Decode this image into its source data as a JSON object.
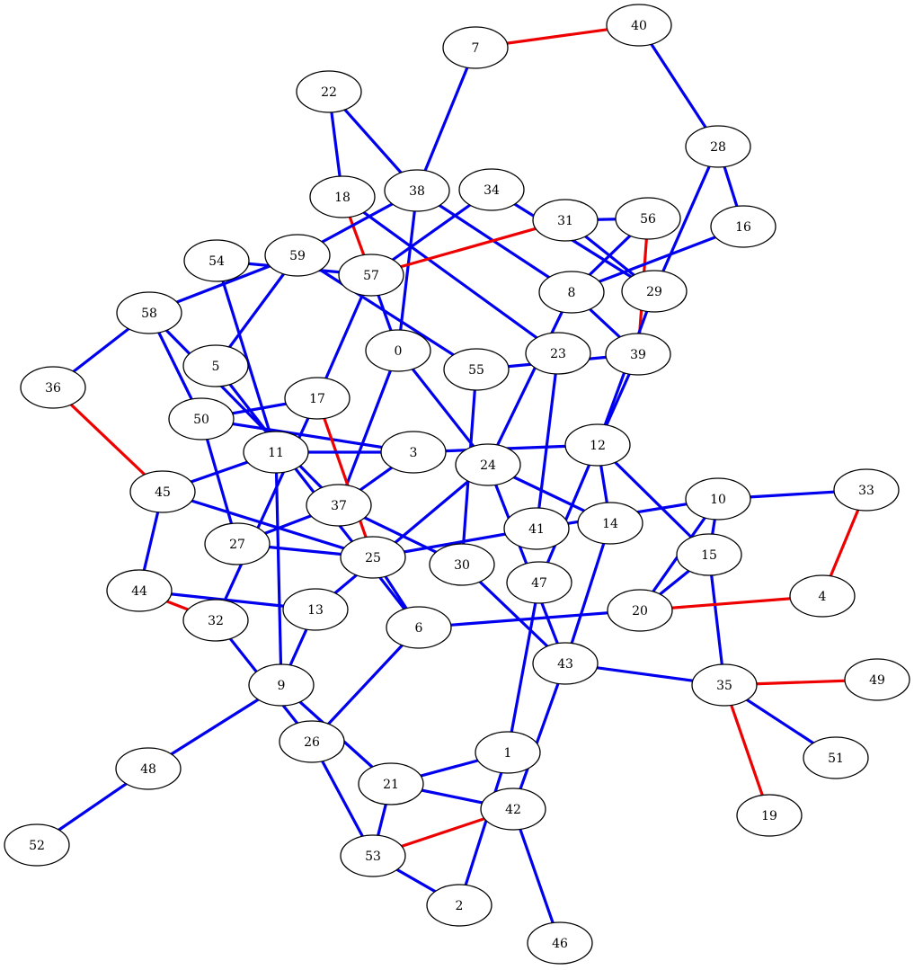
{
  "colors": {
    "normal_edge": "#0000ee",
    "highlight_edge": "#ee0000"
  },
  "nodes": [
    {
      "id": "0"
    },
    {
      "id": "1"
    },
    {
      "id": "2"
    },
    {
      "id": "3"
    },
    {
      "id": "4"
    },
    {
      "id": "5"
    },
    {
      "id": "6"
    },
    {
      "id": "7"
    },
    {
      "id": "8"
    },
    {
      "id": "9"
    },
    {
      "id": "10"
    },
    {
      "id": "11"
    },
    {
      "id": "12"
    },
    {
      "id": "13"
    },
    {
      "id": "14"
    },
    {
      "id": "15"
    },
    {
      "id": "16"
    },
    {
      "id": "17"
    },
    {
      "id": "18"
    },
    {
      "id": "19"
    },
    {
      "id": "20"
    },
    {
      "id": "21"
    },
    {
      "id": "22"
    },
    {
      "id": "23"
    },
    {
      "id": "24"
    },
    {
      "id": "25"
    },
    {
      "id": "26"
    },
    {
      "id": "27"
    },
    {
      "id": "28"
    },
    {
      "id": "29"
    },
    {
      "id": "30"
    },
    {
      "id": "31"
    },
    {
      "id": "32"
    },
    {
      "id": "33"
    },
    {
      "id": "34"
    },
    {
      "id": "35"
    },
    {
      "id": "36"
    },
    {
      "id": "37"
    },
    {
      "id": "38"
    },
    {
      "id": "39"
    },
    {
      "id": "40"
    },
    {
      "id": "41"
    },
    {
      "id": "42"
    },
    {
      "id": "43"
    },
    {
      "id": "44"
    },
    {
      "id": "45"
    },
    {
      "id": "46"
    },
    {
      "id": "47"
    },
    {
      "id": "48"
    },
    {
      "id": "49"
    },
    {
      "id": "50"
    },
    {
      "id": "51"
    },
    {
      "id": "52"
    },
    {
      "id": "53"
    },
    {
      "id": "54"
    },
    {
      "id": "55"
    },
    {
      "id": "56"
    },
    {
      "id": "57"
    },
    {
      "id": "58"
    },
    {
      "id": "59"
    }
  ],
  "edges": [
    {
      "from": "7",
      "to": "40",
      "color": "red"
    },
    {
      "from": "40",
      "to": "28",
      "color": "blue"
    },
    {
      "from": "7",
      "to": "38",
      "color": "blue"
    },
    {
      "from": "22",
      "to": "18",
      "color": "blue"
    },
    {
      "from": "22",
      "to": "38",
      "color": "blue"
    },
    {
      "from": "28",
      "to": "16",
      "color": "blue"
    },
    {
      "from": "28",
      "to": "29",
      "color": "blue"
    },
    {
      "from": "18",
      "to": "57",
      "color": "red"
    },
    {
      "from": "18",
      "to": "23",
      "color": "blue"
    },
    {
      "from": "38",
      "to": "8",
      "color": "blue"
    },
    {
      "from": "38",
      "to": "59",
      "color": "blue"
    },
    {
      "from": "38",
      "to": "0",
      "color": "blue"
    },
    {
      "from": "34",
      "to": "57",
      "color": "blue"
    },
    {
      "from": "34",
      "to": "29",
      "color": "blue"
    },
    {
      "from": "31",
      "to": "56",
      "color": "blue"
    },
    {
      "from": "31",
      "to": "57",
      "color": "red"
    },
    {
      "from": "31",
      "to": "29",
      "color": "blue"
    },
    {
      "from": "56",
      "to": "8",
      "color": "blue"
    },
    {
      "from": "56",
      "to": "39",
      "color": "red"
    },
    {
      "from": "16",
      "to": "8",
      "color": "blue"
    },
    {
      "from": "54",
      "to": "57",
      "color": "blue"
    },
    {
      "from": "54",
      "to": "11",
      "color": "blue"
    },
    {
      "from": "59",
      "to": "55",
      "color": "blue"
    },
    {
      "from": "59",
      "to": "5",
      "color": "blue"
    },
    {
      "from": "57",
      "to": "0",
      "color": "blue"
    },
    {
      "from": "57",
      "to": "17",
      "color": "blue"
    },
    {
      "from": "58",
      "to": "59",
      "color": "blue"
    },
    {
      "from": "58",
      "to": "36",
      "color": "blue"
    },
    {
      "from": "58",
      "to": "50",
      "color": "blue"
    },
    {
      "from": "58",
      "to": "37",
      "color": "blue"
    },
    {
      "from": "8",
      "to": "39",
      "color": "blue"
    },
    {
      "from": "8",
      "to": "24",
      "color": "blue"
    },
    {
      "from": "29",
      "to": "12",
      "color": "blue"
    },
    {
      "from": "0",
      "to": "24",
      "color": "blue"
    },
    {
      "from": "0",
      "to": "37",
      "color": "blue"
    },
    {
      "from": "5",
      "to": "6",
      "color": "blue"
    },
    {
      "from": "55",
      "to": "39",
      "color": "blue"
    },
    {
      "from": "55",
      "to": "30",
      "color": "blue"
    },
    {
      "from": "23",
      "to": "41",
      "color": "blue"
    },
    {
      "from": "39",
      "to": "12",
      "color": "blue"
    },
    {
      "from": "36",
      "to": "45",
      "color": "red"
    },
    {
      "from": "50",
      "to": "17",
      "color": "blue"
    },
    {
      "from": "50",
      "to": "3",
      "color": "blue"
    },
    {
      "from": "50",
      "to": "27",
      "color": "blue"
    },
    {
      "from": "17",
      "to": "25",
      "color": "red"
    },
    {
      "from": "17",
      "to": "32",
      "color": "blue"
    },
    {
      "from": "11",
      "to": "3",
      "color": "blue"
    },
    {
      "from": "11",
      "to": "45",
      "color": "blue"
    },
    {
      "from": "11",
      "to": "9",
      "color": "blue"
    },
    {
      "from": "3",
      "to": "12",
      "color": "blue"
    },
    {
      "from": "3",
      "to": "37",
      "color": "blue"
    },
    {
      "from": "24",
      "to": "14",
      "color": "blue"
    },
    {
      "from": "24",
      "to": "13",
      "color": "blue"
    },
    {
      "from": "24",
      "to": "43",
      "color": "blue"
    },
    {
      "from": "12",
      "to": "47",
      "color": "blue"
    },
    {
      "from": "12",
      "to": "14",
      "color": "blue"
    },
    {
      "from": "12",
      "to": "15",
      "color": "blue"
    },
    {
      "from": "10",
      "to": "33",
      "color": "blue"
    },
    {
      "from": "10",
      "to": "41",
      "color": "blue"
    },
    {
      "from": "10",
      "to": "20",
      "color": "blue"
    },
    {
      "from": "10",
      "to": "15",
      "color": "blue"
    },
    {
      "from": "33",
      "to": "4",
      "color": "red"
    },
    {
      "from": "45",
      "to": "25",
      "color": "blue"
    },
    {
      "from": "45",
      "to": "44",
      "color": "blue"
    },
    {
      "from": "37",
      "to": "27",
      "color": "blue"
    },
    {
      "from": "37",
      "to": "30",
      "color": "blue"
    },
    {
      "from": "41",
      "to": "25",
      "color": "blue"
    },
    {
      "from": "14",
      "to": "43",
      "color": "blue"
    },
    {
      "from": "27",
      "to": "25",
      "color": "blue"
    },
    {
      "from": "15",
      "to": "20",
      "color": "blue"
    },
    {
      "from": "15",
      "to": "35",
      "color": "blue"
    },
    {
      "from": "25",
      "to": "6",
      "color": "blue"
    },
    {
      "from": "30",
      "to": "43",
      "color": "blue"
    },
    {
      "from": "47",
      "to": "1",
      "color": "blue"
    },
    {
      "from": "20",
      "to": "4",
      "color": "red"
    },
    {
      "from": "20",
      "to": "6",
      "color": "blue"
    },
    {
      "from": "44",
      "to": "32",
      "color": "red"
    },
    {
      "from": "44",
      "to": "13",
      "color": "blue"
    },
    {
      "from": "32",
      "to": "26",
      "color": "blue"
    },
    {
      "from": "13",
      "to": "9",
      "color": "blue"
    },
    {
      "from": "6",
      "to": "26",
      "color": "blue"
    },
    {
      "from": "43",
      "to": "35",
      "color": "blue"
    },
    {
      "from": "43",
      "to": "42",
      "color": "blue"
    },
    {
      "from": "35",
      "to": "49",
      "color": "red"
    },
    {
      "from": "35",
      "to": "51",
      "color": "blue"
    },
    {
      "from": "35",
      "to": "19",
      "color": "red"
    },
    {
      "from": "9",
      "to": "48",
      "color": "blue"
    },
    {
      "from": "9",
      "to": "21",
      "color": "blue"
    },
    {
      "from": "48",
      "to": "52",
      "color": "blue"
    },
    {
      "from": "26",
      "to": "53",
      "color": "blue"
    },
    {
      "from": "1",
      "to": "21",
      "color": "blue"
    },
    {
      "from": "1",
      "to": "2",
      "color": "blue"
    },
    {
      "from": "21",
      "to": "42",
      "color": "blue"
    },
    {
      "from": "21",
      "to": "53",
      "color": "blue"
    },
    {
      "from": "42",
      "to": "53",
      "color": "red"
    },
    {
      "from": "42",
      "to": "46",
      "color": "blue"
    },
    {
      "from": "53",
      "to": "2",
      "color": "blue"
    }
  ]
}
